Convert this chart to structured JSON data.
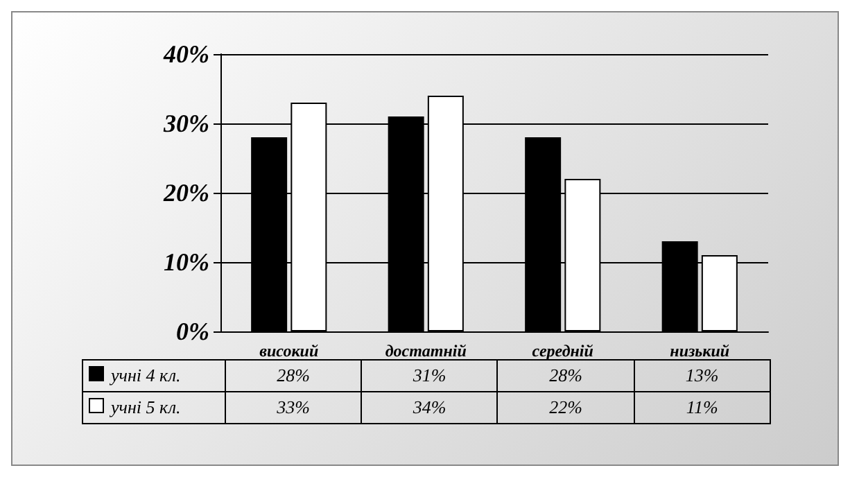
{
  "chart_data": {
    "type": "bar",
    "categories": [
      "високий",
      "достатній",
      "середній",
      "низький"
    ],
    "series": [
      {
        "name": "учні 4 кл.",
        "color": "#000000",
        "values": [
          28,
          31,
          28,
          13
        ],
        "value_labels": [
          "28%",
          "31%",
          "28%",
          "13%"
        ]
      },
      {
        "name": "учні 5 кл.",
        "color": "#ffffff",
        "values": [
          33,
          34,
          22,
          11
        ],
        "value_labels": [
          "33%",
          "34%",
          "22%",
          "11%"
        ]
      }
    ],
    "ylim": [
      0,
      40
    ],
    "yticks": [
      {
        "value": 0,
        "label": "0%"
      },
      {
        "value": 10,
        "label": "10%"
      },
      {
        "value": 20,
        "label": "20%"
      },
      {
        "value": 30,
        "label": "30%"
      },
      {
        "value": 40,
        "label": "40%"
      }
    ],
    "grid": "y",
    "legend": "bottom"
  }
}
